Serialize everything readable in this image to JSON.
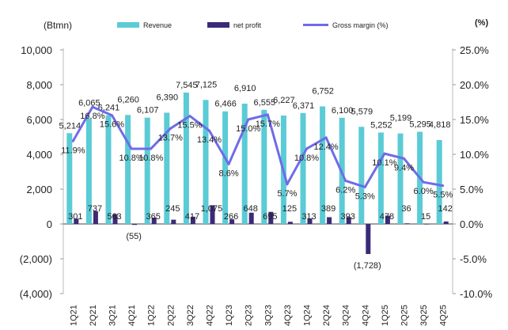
{
  "chart_data": {
    "type": "bar",
    "left_unit_label": "(Btmn)",
    "right_unit_label": "(%)",
    "legend": {
      "placement": "top",
      "entries": [
        "Revenue",
        "net profit",
        "Gross margin (%)"
      ]
    },
    "categories": [
      "1Q21",
      "2Q21",
      "3Q21",
      "4Q21",
      "1Q22",
      "2Q22",
      "3Q22",
      "4Q22",
      "1Q23",
      "2Q23",
      "3Q23",
      "4Q23",
      "1Q24",
      "2Q24",
      "3Q24",
      "4Q24",
      "1Q25",
      "2Q25",
      "3Q25",
      "4Q25"
    ],
    "left_axis": {
      "ylim": [
        -4000,
        10000
      ],
      "ticks": [
        -4000,
        -2000,
        0,
        2000,
        4000,
        6000,
        8000,
        10000
      ],
      "tick_labels": [
        "(4,000)",
        "(2,000)",
        "0",
        "2,000",
        "4,000",
        "6,000",
        "8,000",
        "10,000"
      ]
    },
    "right_axis": {
      "ylim": [
        -10,
        25
      ],
      "ticks": [
        -10,
        -5,
        0,
        5,
        10,
        15,
        20,
        25
      ],
      "tick_labels": [
        "-10.0%",
        "-5.0%",
        "0.0%",
        "5.0%",
        "10.0%",
        "15.0%",
        "20.0%",
        "25.0%"
      ]
    },
    "series": [
      {
        "name": "Revenue",
        "kind": "bar",
        "axis": "left",
        "color": "#5BCBD6",
        "values": [
          5214,
          6065,
          6241,
          6260,
          6107,
          6390,
          7545,
          7125,
          6466,
          6910,
          6555,
          6227,
          6371,
          6752,
          6100,
          5579,
          5252,
          5199,
          5295,
          4818
        ],
        "value_labels": [
          "5,214",
          "6,065",
          "6,241",
          "6,260",
          "6,107",
          "6,390",
          "7,545",
          "7,125",
          "6,466",
          "6,910",
          "6,555",
          "6,227",
          "6,371",
          "6,752",
          "6,100",
          "5,579",
          "5,252",
          "5,199",
          "5,295",
          "4,818"
        ]
      },
      {
        "name": "net profit",
        "kind": "bar",
        "axis": "left",
        "color": "#3B2A78",
        "values": [
          301,
          737,
          563,
          -55,
          365,
          245,
          417,
          1075,
          266,
          648,
          695,
          125,
          313,
          389,
          393,
          -1728,
          478,
          36,
          15,
          142
        ],
        "value_labels": [
          "301",
          "737",
          "563",
          "(55)",
          "365",
          "245",
          "417",
          "1,075",
          "266",
          "648",
          "695",
          "125",
          "313",
          "389",
          "393",
          "(1,728)",
          "478",
          "36",
          "15",
          "142"
        ]
      },
      {
        "name": "Gross margin (%)",
        "kind": "line",
        "axis": "right",
        "color": "#6F6BE8",
        "values": [
          11.9,
          16.8,
          15.6,
          10.8,
          10.8,
          13.7,
          15.5,
          13.4,
          8.6,
          15.0,
          15.7,
          5.7,
          10.8,
          12.4,
          6.2,
          5.3,
          10.1,
          9.4,
          6.0,
          5.5
        ],
        "value_labels": [
          "11.9%",
          "16.8%",
          "15.6%",
          "10.8%",
          "10.8%",
          "13.7%",
          "15.5%",
          "13.4%",
          "8.6%",
          "15.0%",
          "15.7%",
          "5.7%",
          "10.8%",
          "12.4%",
          "6.2%",
          "5.3%",
          "10.1%",
          "9.4%",
          "6.0%",
          "5.5%"
        ]
      }
    ]
  }
}
